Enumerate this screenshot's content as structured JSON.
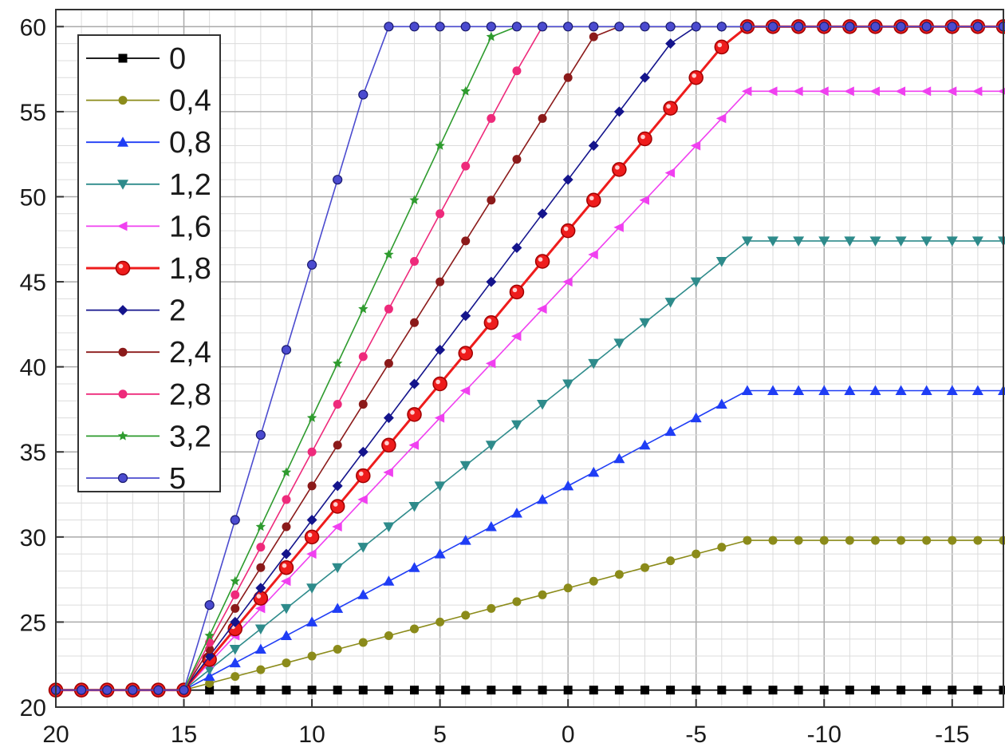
{
  "chart_data": {
    "type": "line",
    "title": "",
    "xlabel": "",
    "ylabel": "",
    "xlim": [
      20,
      -17
    ],
    "x_reversed": true,
    "ylim": [
      20,
      61
    ],
    "grid": true,
    "legend_position": "top-left",
    "x_ticks": [
      20,
      15,
      10,
      5,
      0,
      -5,
      -10,
      -15
    ],
    "x_tick_labels": [
      "20",
      "15",
      "10",
      "5",
      "0",
      "-5",
      "-10",
      "-15"
    ],
    "y_ticks": [
      20,
      25,
      30,
      35,
      40,
      45,
      50,
      55,
      60
    ],
    "y_tick_labels": [
      "20",
      "25",
      "30",
      "35",
      "40",
      "45",
      "50",
      "55",
      "60"
    ],
    "x": [
      20,
      19,
      18,
      17,
      16,
      15,
      14,
      13,
      12,
      11,
      10,
      9,
      8,
      7,
      6,
      5,
      4,
      3,
      2,
      1,
      0,
      -1,
      -2,
      -3,
      -4,
      -5,
      -6,
      -7,
      -8,
      -9,
      -10,
      -11,
      -12,
      -13,
      -14,
      -15,
      -16,
      -17
    ],
    "series": [
      {
        "name": "0",
        "color": "#000000",
        "marker": "square",
        "values": [
          21,
          21,
          21,
          21,
          21,
          21,
          21,
          21,
          21,
          21,
          21,
          21,
          21,
          21,
          21,
          21,
          21,
          21,
          21,
          21,
          21,
          21,
          21,
          21,
          21,
          21,
          21,
          21,
          21,
          21,
          21,
          21,
          21,
          21,
          21,
          21,
          21,
          21
        ]
      },
      {
        "name": "0,4",
        "color": "#8b8b1a",
        "marker": "circle",
        "values": [
          21,
          21,
          21,
          21,
          21,
          21,
          21.4,
          21.8,
          22.2,
          22.6,
          23.0,
          23.4,
          23.8,
          24.2,
          24.6,
          25.0,
          25.4,
          25.8,
          26.2,
          26.6,
          27.0,
          27.4,
          27.8,
          28.2,
          28.6,
          29.0,
          29.4,
          29.8,
          29.8,
          29.8,
          29.8,
          29.8,
          29.8,
          29.8,
          29.8,
          29.8,
          29.8,
          29.8
        ]
      },
      {
        "name": "0,8",
        "color": "#1f3df5",
        "marker": "triangle-up",
        "values": [
          21,
          21,
          21,
          21,
          21,
          21,
          21.8,
          22.6,
          23.4,
          24.2,
          25.0,
          25.8,
          26.6,
          27.4,
          28.2,
          29.0,
          29.8,
          30.6,
          31.4,
          32.2,
          33.0,
          33.8,
          34.6,
          35.4,
          36.2,
          37.0,
          37.8,
          38.6,
          38.6,
          38.6,
          38.6,
          38.6,
          38.6,
          38.6,
          38.6,
          38.6,
          38.6,
          38.6
        ]
      },
      {
        "name": "1,2",
        "color": "#2e8b8b",
        "marker": "triangle-down",
        "values": [
          21,
          21,
          21,
          21,
          21,
          21,
          22.2,
          23.4,
          24.6,
          25.8,
          27.0,
          28.2,
          29.4,
          30.6,
          31.8,
          33.0,
          34.2,
          35.4,
          36.6,
          37.8,
          39.0,
          40.2,
          41.4,
          42.6,
          43.8,
          45.0,
          46.2,
          47.4,
          47.4,
          47.4,
          47.4,
          47.4,
          47.4,
          47.4,
          47.4,
          47.4,
          47.4,
          47.4
        ]
      },
      {
        "name": "1,6",
        "color": "#f040f0",
        "marker": "triangle-left",
        "values": [
          21,
          21,
          21,
          21,
          21,
          21,
          22.6,
          24.2,
          25.8,
          27.4,
          29.0,
          30.6,
          32.2,
          33.8,
          35.4,
          37.0,
          38.6,
          40.2,
          41.8,
          43.4,
          45.0,
          46.6,
          48.2,
          49.8,
          51.4,
          53.0,
          54.6,
          56.2,
          56.2,
          56.2,
          56.2,
          56.2,
          56.2,
          56.2,
          56.2,
          56.2,
          56.2,
          56.2
        ]
      },
      {
        "name": "1,8",
        "color": "#ee1c1c",
        "marker": "big-circle",
        "values": [
          21,
          21,
          21,
          21,
          21,
          21,
          22.8,
          24.6,
          26.4,
          28.2,
          30.0,
          31.8,
          33.6,
          35.4,
          37.2,
          39.0,
          40.8,
          42.6,
          44.4,
          46.2,
          48.0,
          49.8,
          51.6,
          53.4,
          55.2,
          57.0,
          58.8,
          60,
          60,
          60,
          60,
          60,
          60,
          60,
          60,
          60,
          60,
          60
        ]
      },
      {
        "name": "2",
        "color": "#14148c",
        "marker": "diamond",
        "values": [
          21,
          21,
          21,
          21,
          21,
          21,
          23,
          25,
          27,
          29,
          31,
          33,
          35,
          37,
          39,
          41,
          43,
          45,
          47,
          49,
          51,
          53,
          55,
          57,
          59,
          60,
          60,
          60,
          60,
          60,
          60,
          60,
          60,
          60,
          60,
          60,
          60,
          60
        ]
      },
      {
        "name": "2,4",
        "color": "#8b1a1a",
        "marker": "circle",
        "values": [
          21,
          21,
          21,
          21,
          21,
          21,
          23.4,
          25.8,
          28.2,
          30.6,
          33.0,
          35.4,
          37.8,
          40.2,
          42.6,
          45.0,
          47.4,
          49.8,
          52.2,
          54.6,
          57.0,
          59.4,
          60,
          60,
          60,
          60,
          60,
          60,
          60,
          60,
          60,
          60,
          60,
          60,
          60,
          60,
          60,
          60
        ]
      },
      {
        "name": "2,8",
        "color": "#ee2a7b",
        "marker": "circle",
        "values": [
          21,
          21,
          21,
          21,
          21,
          21,
          23.8,
          26.6,
          29.4,
          32.2,
          35.0,
          37.8,
          40.6,
          43.4,
          46.2,
          49.0,
          51.8,
          54.6,
          57.4,
          60,
          60,
          60,
          60,
          60,
          60,
          60,
          60,
          60,
          60,
          60,
          60,
          60,
          60,
          60,
          60,
          60,
          60,
          60
        ]
      },
      {
        "name": "3,2",
        "color": "#2e9b2e",
        "marker": "star",
        "values": [
          21,
          21,
          21,
          21,
          21,
          21,
          24.2,
          27.4,
          30.6,
          33.8,
          37.0,
          40.2,
          43.4,
          46.6,
          49.8,
          53.0,
          56.2,
          59.4,
          60,
          60,
          60,
          60,
          60,
          60,
          60,
          60,
          60,
          60,
          60,
          60,
          60,
          60,
          60,
          60,
          60,
          60,
          60,
          60
        ]
      },
      {
        "name": "5",
        "color": "#4b4bcf",
        "marker": "ring",
        "values": [
          21,
          21,
          21,
          21,
          21,
          21,
          26,
          31,
          36,
          41,
          46,
          51,
          56,
          60,
          60,
          60,
          60,
          60,
          60,
          60,
          60,
          60,
          60,
          60,
          60,
          60,
          60,
          60,
          60,
          60,
          60,
          60,
          60,
          60,
          60,
          60,
          60,
          60
        ]
      }
    ]
  }
}
